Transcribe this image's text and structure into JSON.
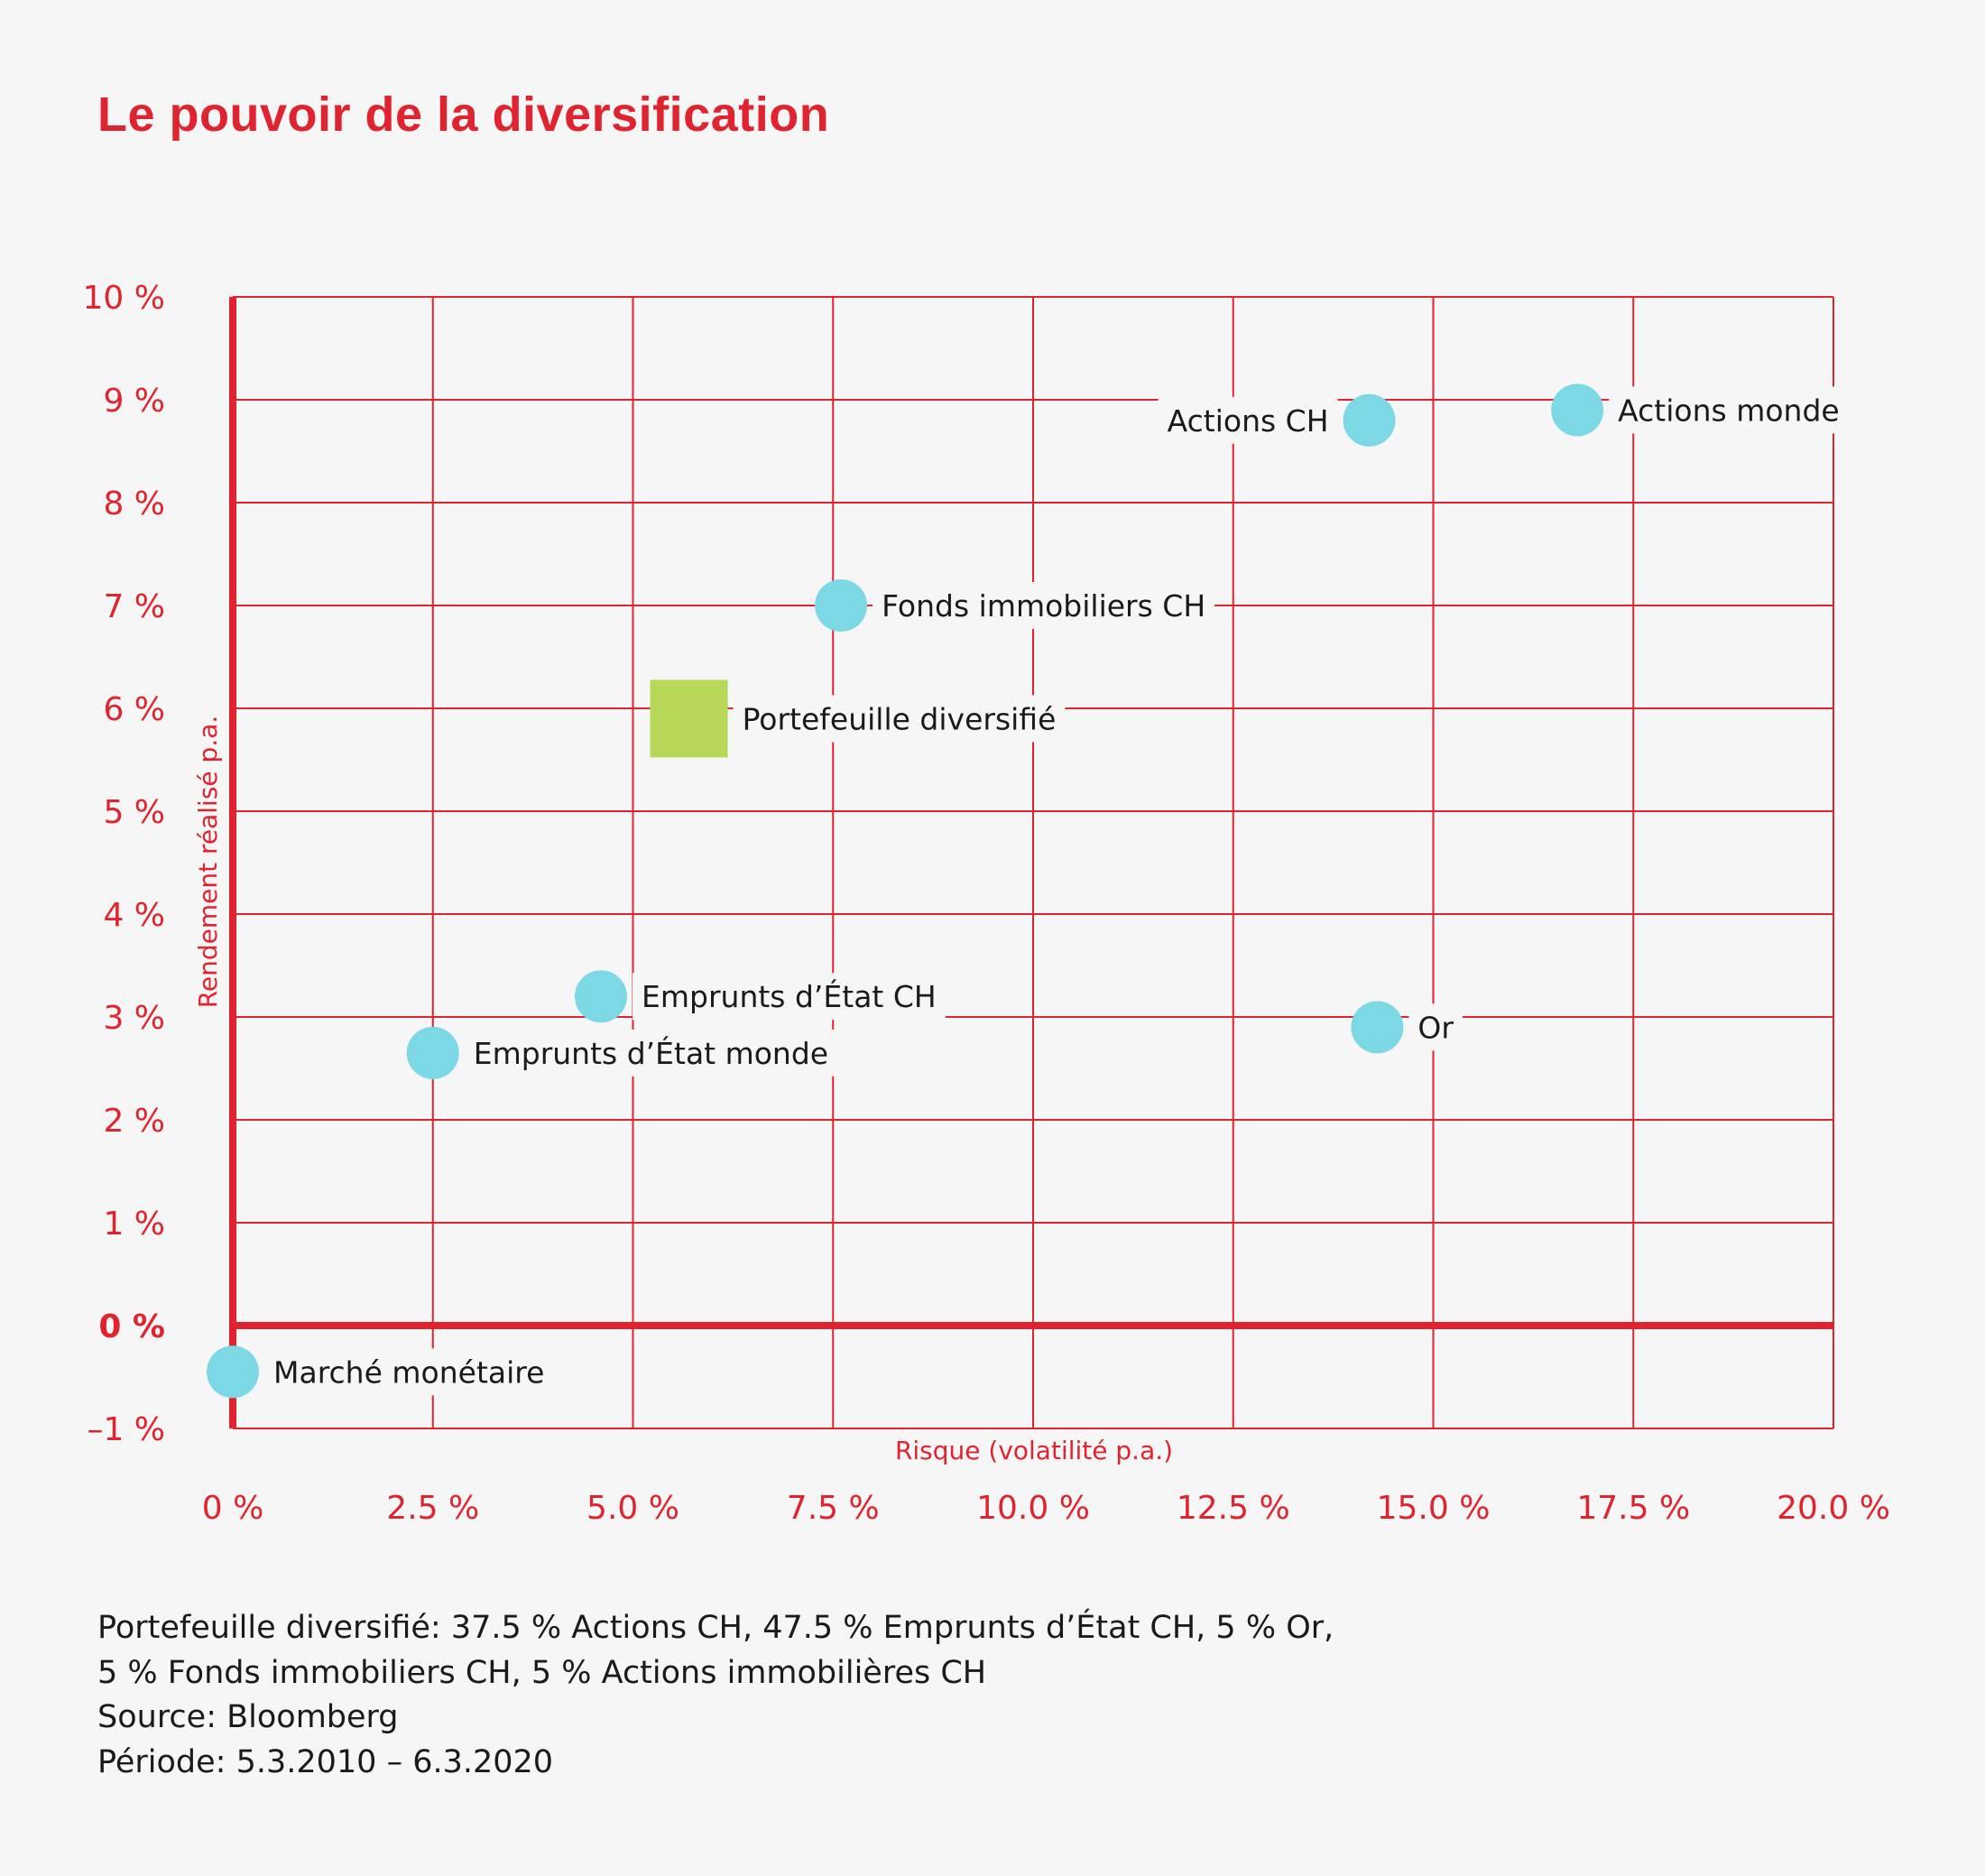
{
  "chart_data": {
    "type": "scatter",
    "title": "Le pouvoir de la diversification",
    "xlabel": "Risque (volatilité p.a.)",
    "ylabel": "Rendement réalisé p.a.",
    "xlim": [
      0,
      20
    ],
    "ylim": [
      -1,
      10
    ],
    "x_ticks": [
      {
        "value": 0,
        "label": "0 %"
      },
      {
        "value": 2.5,
        "label": "2.5 %"
      },
      {
        "value": 5,
        "label": "5.0 %"
      },
      {
        "value": 7.5,
        "label": "7.5 %"
      },
      {
        "value": 10,
        "label": "10.0 %"
      },
      {
        "value": 12.5,
        "label": "12.5 %"
      },
      {
        "value": 15,
        "label": "15.0 %"
      },
      {
        "value": 17.5,
        "label": "17.5 %"
      },
      {
        "value": 20,
        "label": "20.0 %"
      }
    ],
    "y_ticks": [
      {
        "value": 10,
        "label": "10 %"
      },
      {
        "value": 9,
        "label": "9 %"
      },
      {
        "value": 8,
        "label": "8 %"
      },
      {
        "value": 7,
        "label": "7 %"
      },
      {
        "value": 6,
        "label": "6 %"
      },
      {
        "value": 5,
        "label": "5 %"
      },
      {
        "value": 4,
        "label": "4 %"
      },
      {
        "value": 3,
        "label": "3 %"
      },
      {
        "value": 2,
        "label": "2 %"
      },
      {
        "value": 1,
        "label": "1 %"
      },
      {
        "value": 0,
        "label": "0 %"
      },
      {
        "value": -1,
        "label": "–1 %"
      }
    ],
    "grid": true,
    "points": [
      {
        "name": "Actions CH",
        "x": 14.2,
        "y": 8.8,
        "shape": "circle",
        "label_side": "left"
      },
      {
        "name": "Actions monde",
        "x": 16.8,
        "y": 8.9,
        "shape": "circle",
        "label_side": "right"
      },
      {
        "name": "Fonds immobiliers CH",
        "x": 7.6,
        "y": 7.0,
        "shape": "circle",
        "label_side": "right"
      },
      {
        "name": "Portefeuille diversifié",
        "x": 5.7,
        "y": 5.9,
        "shape": "square",
        "label_side": "right"
      },
      {
        "name": "Emprunts d’État CH",
        "x": 4.6,
        "y": 3.2,
        "shape": "circle",
        "label_side": "right"
      },
      {
        "name": "Emprunts d’État monde",
        "x": 2.5,
        "y": 2.65,
        "shape": "circle",
        "label_side": "right"
      },
      {
        "name": "Or",
        "x": 14.3,
        "y": 2.9,
        "shape": "circle",
        "label_side": "right"
      },
      {
        "name": "Marché monétaire",
        "x": 0,
        "y": -0.45,
        "shape": "circle",
        "label_side": "right"
      }
    ],
    "colors": {
      "axis": "#e0242f",
      "point": "#7dd8e6",
      "portfolio": "#b8d957",
      "background": "#f6f6f6"
    }
  },
  "notes": [
    "Portefeuille diversifié: 37.5 % Actions CH, 47.5 % Emprunts d’État CH, 5 % Or,",
    "5 % Fonds immobiliers CH, 5 % Actions immobilières CH",
    "Source: Bloomberg",
    "Période: 5.3.2010 – 6.3.2020"
  ]
}
